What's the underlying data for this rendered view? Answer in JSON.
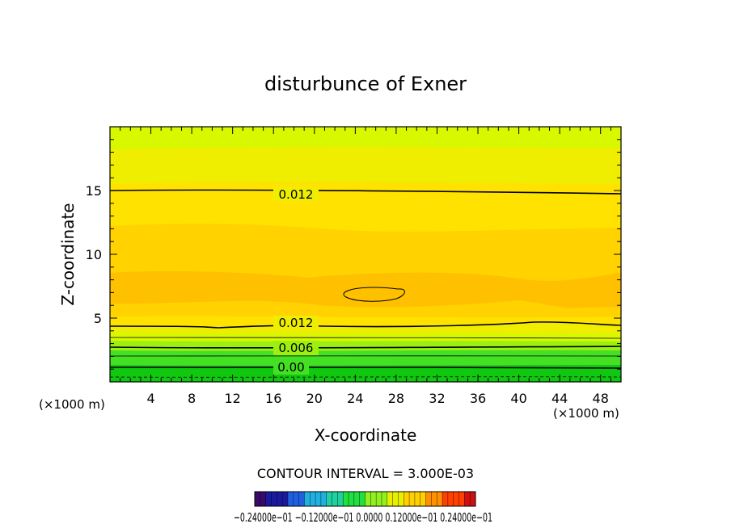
{
  "chart_data": {
    "type": "heatmap",
    "title": "disturbunce of Exner",
    "xlabel": "X-coordinate",
    "ylabel": "Z-coordinate",
    "xlim": [
      0,
      50
    ],
    "ylim": [
      0,
      20
    ],
    "x_ticks": [
      4,
      8,
      12,
      16,
      20,
      24,
      28,
      32,
      36,
      40,
      44,
      48
    ],
    "y_ticks": [
      5,
      10,
      15
    ],
    "x_unit_label": "(×1000 m)",
    "y_unit_label": "(×1000 m)",
    "contour_labels": [
      {
        "text": "0.012",
        "x": 18,
        "z": 14.6
      },
      {
        "text": "0.012",
        "x": 18,
        "z": 4.6
      },
      {
        "text": "0.006",
        "x": 18,
        "z": 2.6
      },
      {
        "text": "0.00",
        "x": 18,
        "z": 1.2
      }
    ],
    "contour_interval_label": "CONTOUR INTERVAL = 3.000E-03",
    "colorbar_labels": "−0.24000e−01 −0.12000e−01 0.0000 0.12000e−01 0.24000e−01",
    "colorbar_colors": [
      "#3a0a6a",
      "#1a1a9e",
      "#2060e0",
      "#20b0e0",
      "#20d0a0",
      "#20e040",
      "#90f020",
      "#e8f000",
      "#ffd000",
      "#ff9000",
      "#ff4000",
      "#d01010"
    ],
    "field_colors": {
      "deep_green": "#10c810",
      "green": "#44e024",
      "light_green": "#9cf010",
      "yellow_green": "#d8f800",
      "yellow": "#f0ee00",
      "gold": "#ffe200",
      "amber": "#ffd200",
      "orange": "#ffc000"
    }
  }
}
